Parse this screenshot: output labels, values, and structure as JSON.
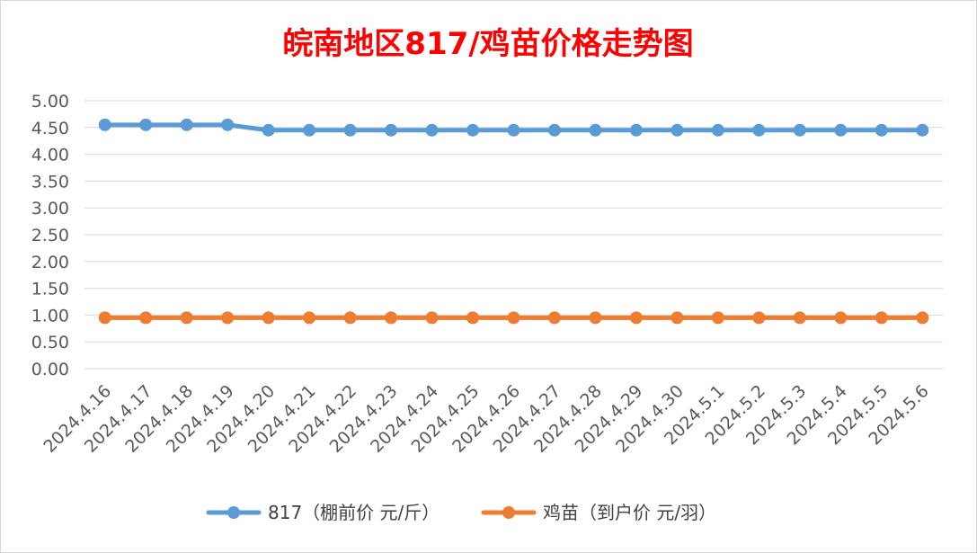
{
  "chart_data": {
    "type": "line",
    "title": "皖南地区817/鸡苗价格走势图",
    "title_color": "#ff0000",
    "xlabel": "",
    "ylabel": "",
    "ylim": [
      0,
      5
    ],
    "y_ticks": [
      "0.00",
      "0.50",
      "1.00",
      "1.50",
      "2.00",
      "2.50",
      "3.00",
      "3.50",
      "4.00",
      "4.50",
      "5.00"
    ],
    "grid": true,
    "legend_position": "bottom",
    "categories": [
      "2024.4.16",
      "2024.4.17",
      "2024.4.18",
      "2024.4.19",
      "2024.4.20",
      "2024.4.21",
      "2024.4.22",
      "2024.4.23",
      "2024.4.24",
      "2024.4.25",
      "2024.4.26",
      "2024.4.27",
      "2024.4.28",
      "2024.4.29",
      "2024.4.30",
      "2024.5.1",
      "2024.5.2",
      "2024.5.3",
      "2024.5.4",
      "2024.5.5",
      "2024.5.6"
    ],
    "series": [
      {
        "name": "817（棚前价 元/斤）",
        "color": "#5b9bd5",
        "values": [
          4.55,
          4.55,
          4.55,
          4.55,
          4.45,
          4.45,
          4.45,
          4.45,
          4.45,
          4.45,
          4.45,
          4.45,
          4.45,
          4.45,
          4.45,
          4.45,
          4.45,
          4.45,
          4.45,
          4.45,
          4.45
        ]
      },
      {
        "name": "鸡苗（到户价 元/羽）",
        "color": "#ed7d31",
        "values": [
          0.95,
          0.95,
          0.95,
          0.95,
          0.95,
          0.95,
          0.95,
          0.95,
          0.95,
          0.95,
          0.95,
          0.95,
          0.95,
          0.95,
          0.95,
          0.95,
          0.95,
          0.95,
          0.95,
          0.95,
          0.95
        ]
      }
    ]
  }
}
